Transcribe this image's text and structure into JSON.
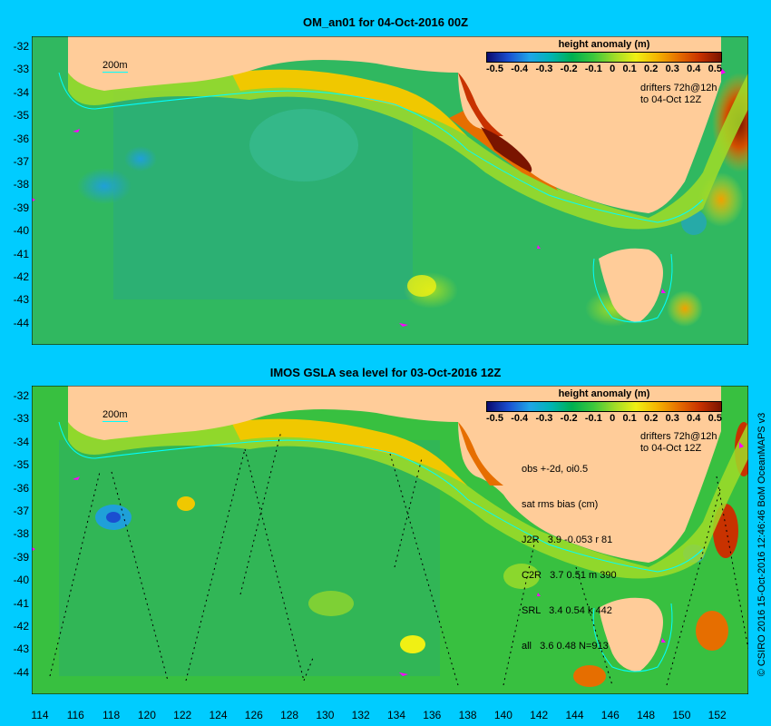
{
  "panel1": {
    "title": "OM_an01 for 04-Oct-2016 00Z",
    "legend_title": "height anomaly (m)",
    "legend_ticks": [
      "-0.5",
      "-0.4",
      "-0.3",
      "-0.2",
      "-0.1",
      "0",
      "0.1",
      "0.2",
      "0.3",
      "0.4",
      "0.5"
    ],
    "drifter_note_1": "drifters 72h@12h",
    "drifter_note_2": "to 04-Oct 12Z",
    "scale_label": "200m"
  },
  "panel2": {
    "title": "IMOS GSLA sea level  for 03-Oct-2016 12Z",
    "legend_title": "height anomaly (m)",
    "legend_ticks": [
      "-0.5",
      "-0.4",
      "-0.3",
      "-0.2",
      "-0.1",
      "0",
      "0.1",
      "0.2",
      "0.3",
      "0.4",
      "0.5"
    ],
    "drifter_note_1": "drifters 72h@12h",
    "drifter_note_2": "to 04-Oct 12Z",
    "scale_label": "200m",
    "stats": {
      "line1": "obs +-2d, oi0.5",
      "line2": "sat rms bias (cm)",
      "line3": "J2R   3.9 -0.053 r 81",
      "line4": "C2R   3.7 0.51 m 390",
      "line5": "SRL   3.4 0.54 k 442",
      "line6": "all   3.6 0.48 N=913"
    }
  },
  "y_ticks": [
    "-32",
    "-33",
    "-34",
    "-35",
    "-36",
    "-37",
    "-38",
    "-39",
    "-40",
    "-41",
    "-42",
    "-43",
    "-44"
  ],
  "x_ticks": [
    "114",
    "116",
    "118",
    "120",
    "122",
    "124",
    "126",
    "128",
    "130",
    "132",
    "134",
    "136",
    "138",
    "140",
    "142",
    "144",
    "146",
    "148",
    "150",
    "152"
  ],
  "credit": "© CSIRO 2016  15-Oct-2016 12:46:46 BoM OceanMAPS v3",
  "colors": {
    "background": "#00ccff",
    "land": "#ffcc99",
    "ocean_base": "#33bb55"
  }
}
